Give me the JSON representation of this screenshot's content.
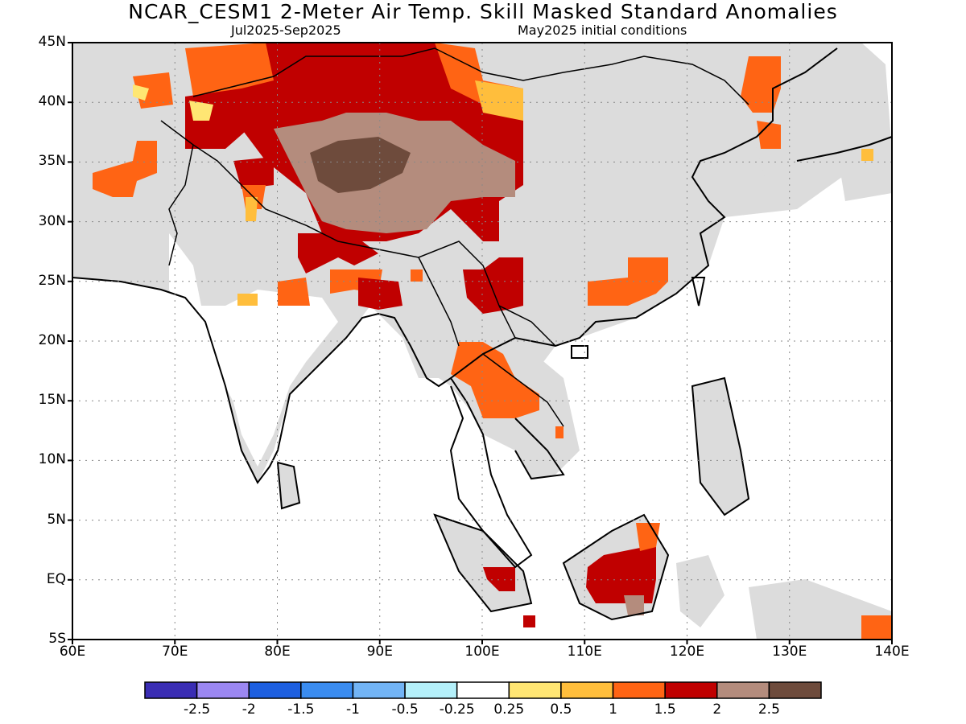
{
  "header": {
    "title": "NCAR_CESM1 2-Meter Air Temp. Skill Masked Standard Anomalies",
    "period": "Jul2025-Sep2025",
    "init": "May2025 initial conditions"
  },
  "axes": {
    "lat_labels": [
      "45N",
      "40N",
      "35N",
      "30N",
      "25N",
      "20N",
      "15N",
      "10N",
      "5N",
      "EQ",
      "5S"
    ],
    "lon_labels": [
      "60E",
      "70E",
      "80E",
      "90E",
      "100E",
      "110E",
      "120E",
      "130E",
      "140E"
    ]
  },
  "colorbar": {
    "colors": [
      "#3a2db4",
      "#9b87f2",
      "#1d5fe0",
      "#3a8cf0",
      "#72b4f5",
      "#b4f0fa",
      "#ffffff",
      "#ffe673",
      "#ffbe3c",
      "#ff6414",
      "#c00000",
      "#b48c7d",
      "#6e4b3c"
    ],
    "labels": [
      "-2.5",
      "-2",
      "-1.5",
      "-1",
      "-0.5",
      "-0.25",
      "0.25",
      "0.5",
      "1",
      "1.5",
      "2",
      "2.5"
    ]
  },
  "map": {
    "region": "Asia",
    "lon_range": [
      60,
      140
    ],
    "lat_range": [
      -5,
      45
    ],
    "no_skill_color": "#dcdcdc",
    "ocean_color": "#ffffff"
  }
}
